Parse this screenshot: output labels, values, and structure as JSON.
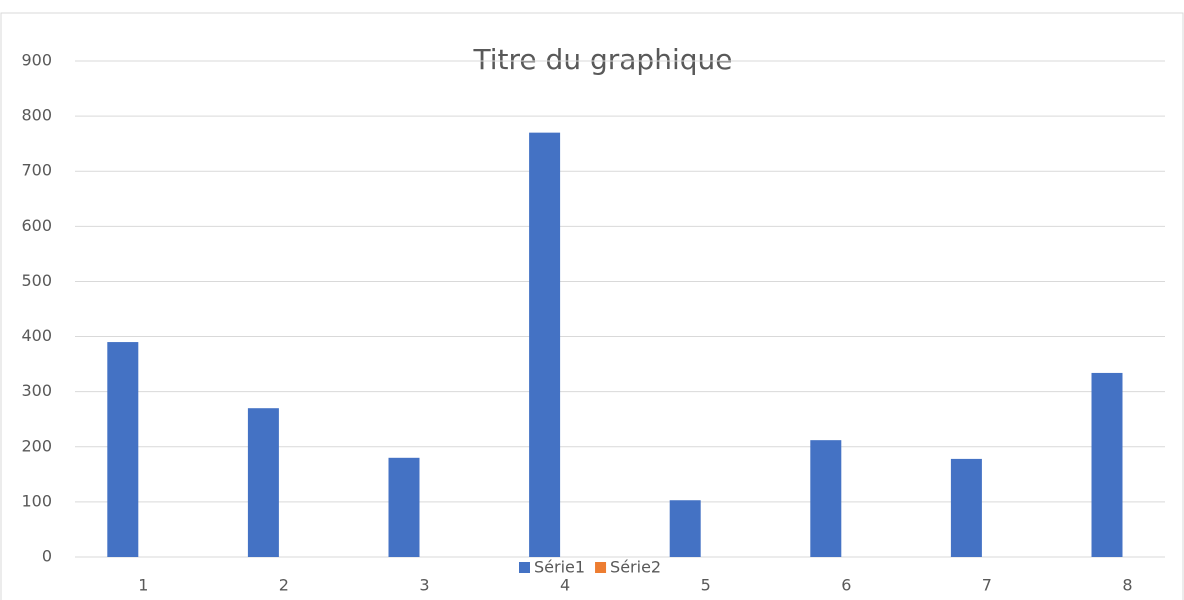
{
  "chart_data": {
    "type": "bar",
    "title": "Titre du graphique",
    "categories": [
      "1",
      "2",
      "3",
      "4",
      "5",
      "6",
      "7",
      "8"
    ],
    "series": [
      {
        "name": "Série1",
        "color": "#4472c4",
        "values": [
          390,
          270,
          180,
          770,
          103,
          212,
          178,
          334
        ]
      },
      {
        "name": "Série2",
        "color": "#ed7d31",
        "values": [
          null,
          null,
          null,
          null,
          null,
          null,
          null,
          null
        ]
      }
    ],
    "ylim": [
      0,
      900
    ],
    "yticks": [
      0,
      100,
      200,
      300,
      400,
      500,
      600,
      700,
      800,
      900
    ],
    "grid": true,
    "legend": "bottom"
  }
}
